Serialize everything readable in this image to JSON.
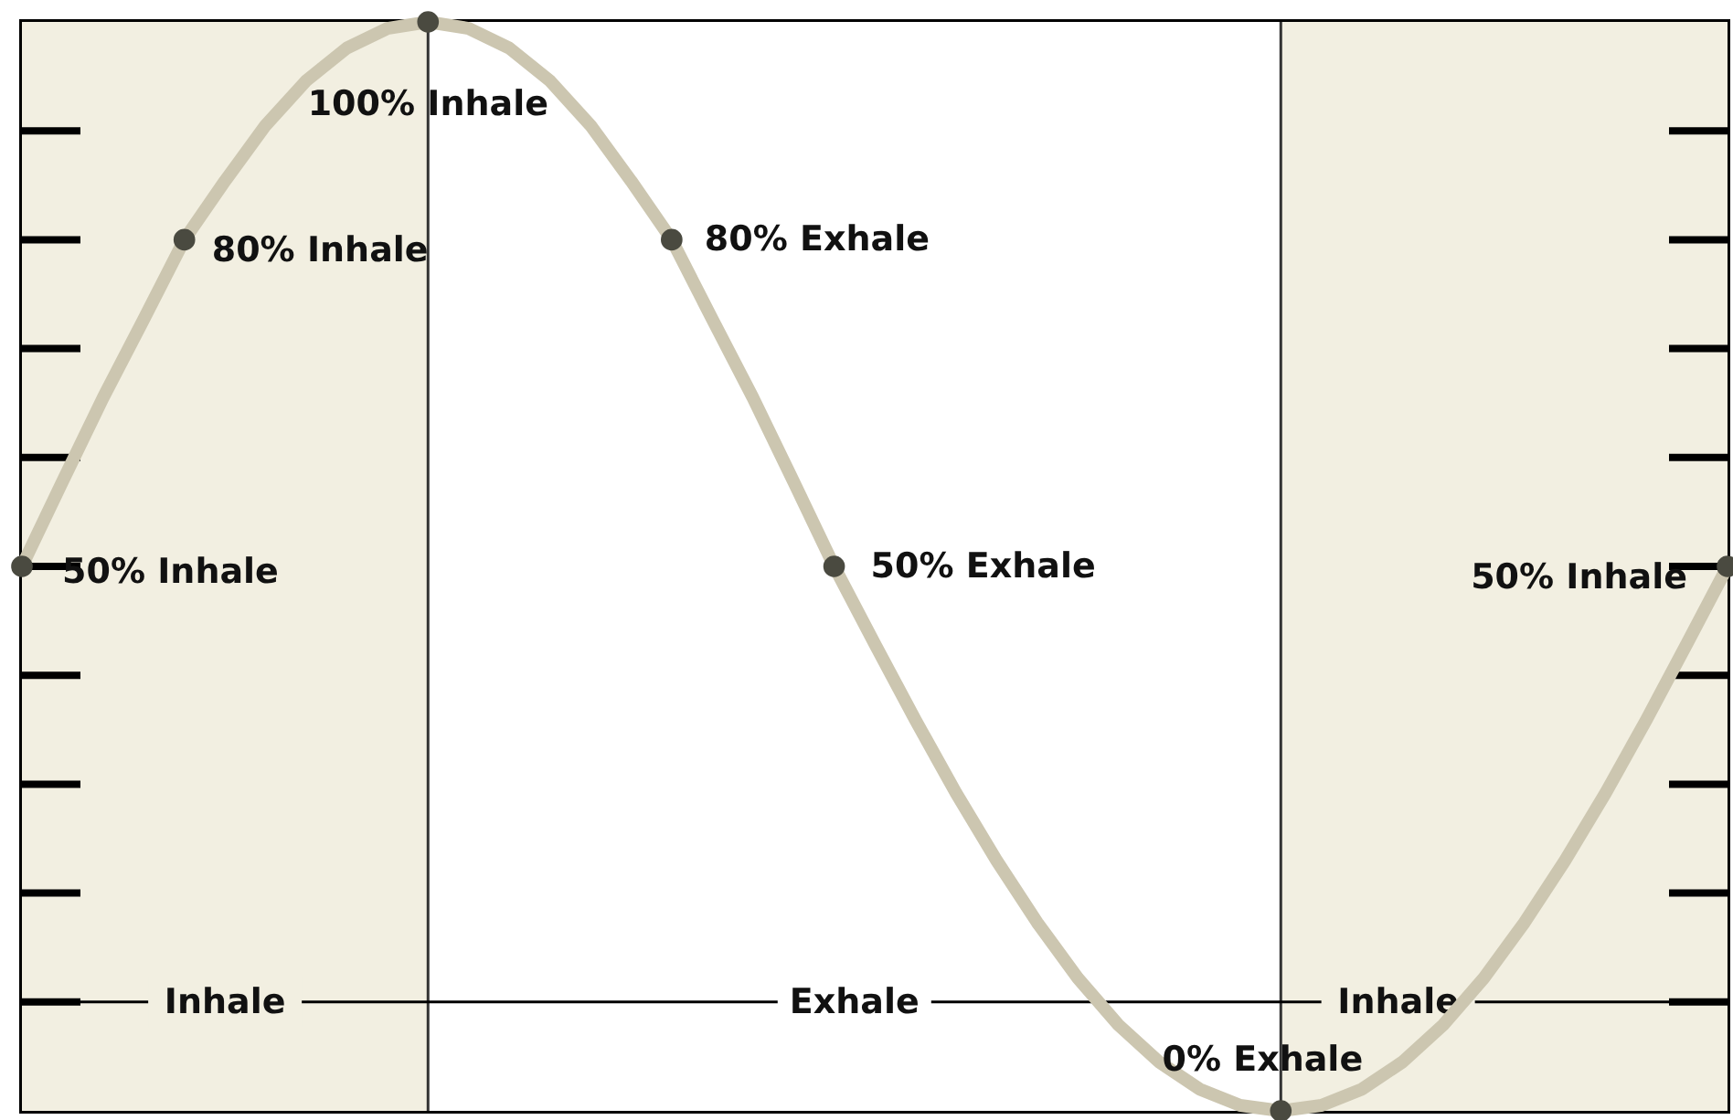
{
  "chart_data": {
    "type": "line",
    "ylim": [
      0,
      100
    ],
    "categories": [
      null,
      null,
      null,
      null,
      null,
      null,
      null,
      null,
      null,
      null,
      null,
      null,
      null,
      null,
      null,
      null,
      null,
      null,
      null,
      null,
      null,
      null,
      null,
      null,
      null,
      null,
      null,
      null,
      null,
      null,
      null,
      null,
      null,
      null,
      null,
      null,
      null,
      null,
      null,
      null,
      null,
      null,
      null
    ],
    "line_style": "solid",
    "series": [
      {
        "color": "#ccc6b0",
        "values": [
          50,
          57.8,
          65.5,
          72.7,
          80,
          85.4,
          90.5,
          94.6,
          97.6,
          99.4,
          100,
          99.4,
          97.6,
          94.6,
          90.5,
          85.4,
          80,
          72.7,
          65.5,
          57.8,
          50,
          42.9,
          35.9,
          29.2,
          23,
          17.3,
          12.2,
          7.9,
          4.5,
          2,
          0.5,
          0,
          0.5,
          2,
          4.5,
          7.9,
          12.2,
          17.3,
          23,
          29.2,
          35.9,
          42.9,
          50
        ],
        "value_labels": [
          "50% Inhale",
          null,
          null,
          null,
          "80% Inhale",
          null,
          null,
          null,
          null,
          null,
          "100% Inhale",
          null,
          null,
          null,
          null,
          null,
          "80% Exhale",
          null,
          null,
          null,
          "50% Exhale",
          null,
          null,
          null,
          null,
          null,
          null,
          null,
          null,
          null,
          null,
          "0% Exhale",
          null,
          null,
          null,
          null,
          null,
          null,
          null,
          null,
          null,
          null,
          "50% Inhale"
        ]
      }
    ],
    "annotations": [
      "Inhale",
      "Exhale",
      "Inhale"
    ],
    "ref_lines": [
      {
        "axis": "y",
        "value": 10,
        "color": "#000000"
      }
    ]
  }
}
